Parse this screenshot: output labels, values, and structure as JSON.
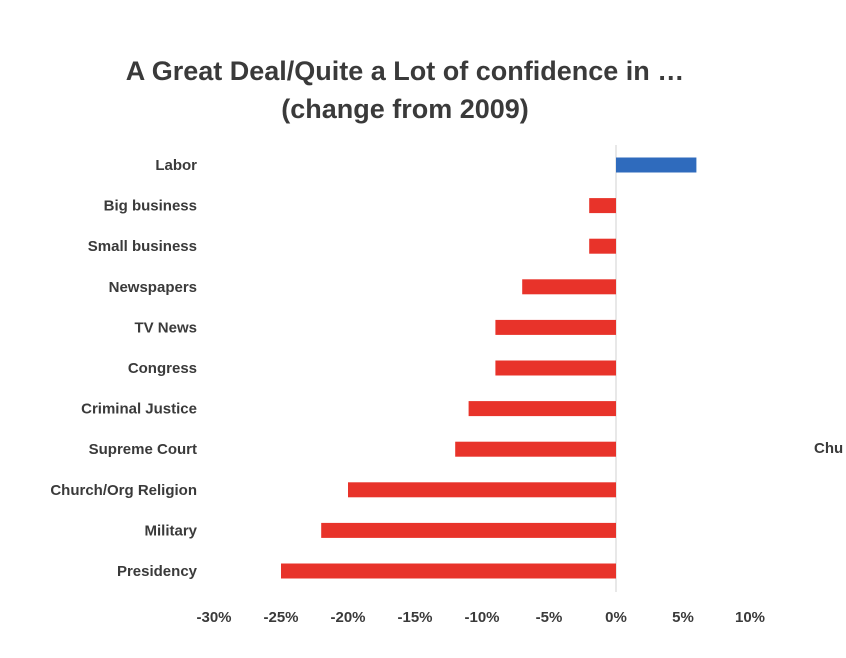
{
  "chart_data": {
    "type": "bar",
    "orientation": "horizontal",
    "title": "A Great Deal/Quite a Lot of confidence in …",
    "subtitle": "(change from 2009)",
    "categories": [
      "Labor",
      "Big business",
      "Small business",
      "Newspapers",
      "TV News",
      "Congress",
      "Criminal Justice",
      "Supreme Court",
      "Church/Org Religion",
      "Military",
      "Presidency"
    ],
    "values": [
      6,
      -2,
      -2,
      -7,
      -9,
      -9,
      -11,
      -12,
      -20,
      -22,
      -25
    ],
    "xlim": [
      -30,
      10
    ],
    "xticks": [
      "-30%",
      "-25%",
      "-20%",
      "-15%",
      "-10%",
      "-5%",
      "0%",
      "5%",
      "10%"
    ],
    "xtick_values": [
      -30,
      -25,
      -20,
      -15,
      -10,
      -5,
      0,
      5,
      10
    ],
    "grid": false,
    "colors": {
      "positive": "#2f6bbd",
      "negative": "#e8332a",
      "zero_line": "#d0d0d0"
    }
  },
  "stray_text": "Chu"
}
